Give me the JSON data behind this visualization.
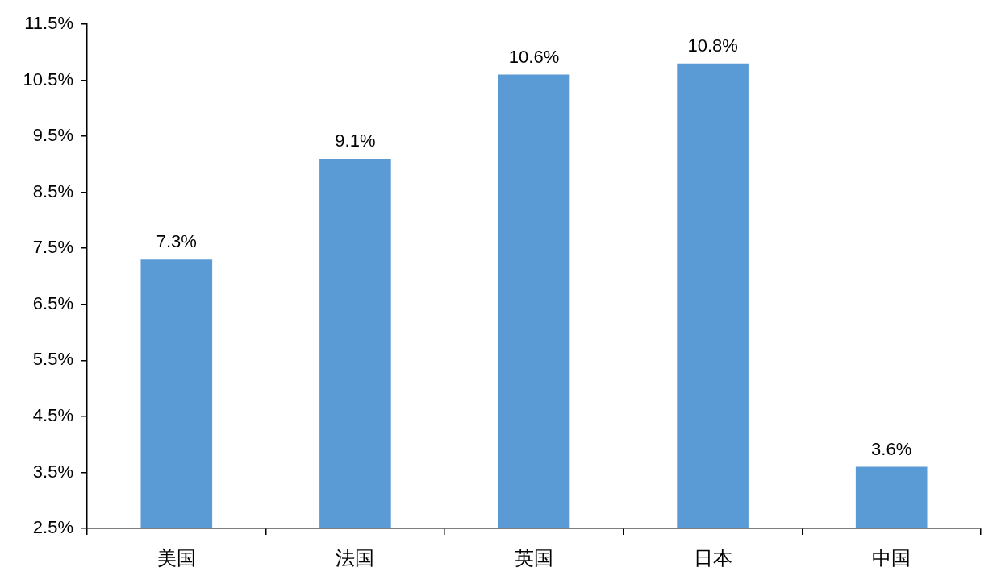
{
  "chart_data": {
    "type": "bar",
    "categories": [
      "美国",
      "法国",
      "英国",
      "日本",
      "中国"
    ],
    "values": [
      7.3,
      9.1,
      10.6,
      10.8,
      3.6
    ],
    "value_labels": [
      "7.3%",
      "9.1%",
      "10.6%",
      "10.8%",
      "3.6%"
    ],
    "color": "#5b9bd5",
    "ylim": [
      2.5,
      11.5
    ],
    "yticks": [
      {
        "value": 2.5,
        "label": "2.5%"
      },
      {
        "value": 3.5,
        "label": "3.5%"
      },
      {
        "value": 4.5,
        "label": "4.5%"
      },
      {
        "value": 5.5,
        "label": "5.5%"
      },
      {
        "value": 6.5,
        "label": "6.5%"
      },
      {
        "value": 7.5,
        "label": "7.5%"
      },
      {
        "value": 8.5,
        "label": "8.5%"
      },
      {
        "value": 9.5,
        "label": "9.5%"
      },
      {
        "value": 10.5,
        "label": "10.5%"
      },
      {
        "value": 11.5,
        "label": "11.5%"
      }
    ],
    "grid": false
  }
}
